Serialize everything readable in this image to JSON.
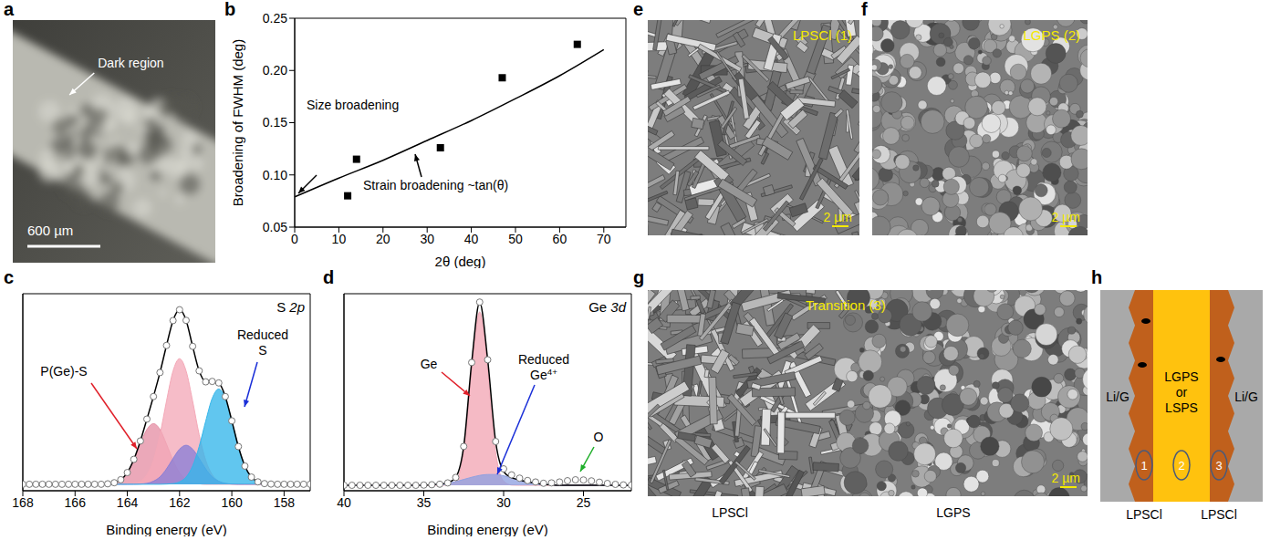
{
  "panel_letters": [
    "a",
    "b",
    "c",
    "d",
    "e",
    "f",
    "g",
    "h"
  ],
  "images": {
    "a": {
      "annotation": "Dark region",
      "scale_bar": "600 µm"
    },
    "e": {
      "label": "LPSCl (1)",
      "scale_bar": "2 µm"
    },
    "f": {
      "label": "LGPS (2)",
      "scale_bar": "2 µm"
    },
    "g": {
      "label": "Transition (3)",
      "scale_bar": "2 µm",
      "captions": [
        "LPSCl",
        "LGPS"
      ]
    }
  },
  "diagram": {
    "sides": [
      "Li/G",
      "Li/G"
    ],
    "center": [
      "LGPS",
      "or",
      "LSPS"
    ],
    "markers": [
      "1",
      "2",
      "3"
    ],
    "captions": [
      "LPSCl",
      "LPSCl"
    ]
  },
  "chart_data": [
    {
      "type": "scatter",
      "x_label": "2θ (deg)",
      "y_label": "Broadening of FWHM (deg)",
      "xlim": [
        0,
        75
      ],
      "xticks": [
        0,
        10,
        20,
        30,
        40,
        50,
        60,
        70
      ],
      "ylim": [
        0.05,
        0.25
      ],
      "yticks": [
        {
          "value": 0.05,
          "label": "0.05"
        },
        {
          "value": 0.1,
          "label": "0.10"
        },
        {
          "value": 0.15,
          "label": "0.15"
        },
        {
          "value": 0.2,
          "label": "0.20"
        },
        {
          "value": 0.25,
          "label": "0.25"
        }
      ],
      "annotations": [
        "Size broadening",
        "Strain broadening ~tan(θ)"
      ],
      "series": [
        {
          "type": "scatter",
          "marker": "square",
          "color": "#000000",
          "x": [
            12,
            14,
            33,
            47,
            64
          ],
          "values": [
            0.08,
            0.115,
            0.126,
            0.193,
            0.225
          ]
        },
        {
          "type": "line",
          "line_style": "solid",
          "color": "#000000",
          "x": [
            0,
            10,
            20,
            30,
            40,
            50,
            60,
            70
          ],
          "values": [
            0.079,
            0.097,
            0.114,
            0.133,
            0.152,
            0.173,
            0.195,
            0.22
          ]
        }
      ]
    },
    {
      "type": "line",
      "title": "S 2p",
      "x_label": "Binding energy (eV)",
      "tick_labels": "x",
      "xlim": [
        168,
        157
      ],
      "xticks": [
        168,
        166,
        164,
        162,
        160,
        158
      ],
      "ylim": [
        -3,
        88
      ],
      "annotations": [
        "P(Ge)-S",
        "Reduced S"
      ],
      "x": [
        168,
        167.75,
        167.5,
        167.25,
        167,
        166.75,
        166.5,
        166.25,
        166,
        165.75,
        165.5,
        165.25,
        165,
        164.75,
        164.5,
        164.25,
        164,
        163.75,
        163.5,
        163.25,
        163,
        162.75,
        162.5,
        162.25,
        162,
        161.75,
        161.5,
        161.25,
        161,
        160.75,
        160.5,
        160.25,
        160,
        159.75,
        159.5,
        159.25,
        159,
        158.75,
        158.5,
        158.25,
        158,
        157.75,
        157.5,
        157.25,
        157
      ],
      "series": [
        {
          "type": "area",
          "color": "#e58fa5",
          "values": [
            0,
            0,
            0,
            0,
            0,
            0,
            0,
            0,
            0,
            0,
            0,
            0,
            0,
            0.2,
            0.7,
            2.1,
            5.3,
            11.1,
            18.5,
            25.3,
            28,
            25.3,
            18.5,
            11.1,
            5.3,
            2.1,
            0.7,
            0.2,
            0,
            0,
            0,
            0,
            0,
            0,
            0,
            0,
            0,
            0,
            0,
            0,
            0,
            0,
            0,
            0,
            0
          ]
        },
        {
          "type": "area",
          "color": "#f4a9b8",
          "values": [
            0,
            0,
            0,
            0,
            0,
            0,
            0,
            0,
            0,
            0,
            0,
            0,
            0,
            0,
            0,
            0,
            0.1,
            0.4,
            1.4,
            4.4,
            11.1,
            22.9,
            38.4,
            52.3,
            58,
            52.3,
            38.4,
            22.9,
            11.1,
            4.4,
            1.4,
            0.4,
            0.1,
            0,
            0,
            0,
            0,
            0,
            0,
            0,
            0,
            0,
            0,
            0,
            0
          ]
        },
        {
          "type": "area",
          "color": "#8a7fd6",
          "values": [
            0,
            0,
            0,
            0,
            0,
            0,
            0,
            0,
            0,
            0,
            0,
            0,
            0,
            0,
            0,
            0,
            0,
            0,
            0.1,
            0.4,
            1.4,
            3.4,
            7.1,
            11.9,
            16.2,
            18,
            16.2,
            11.9,
            7.1,
            3.4,
            1.4,
            0.4,
            0.1,
            0,
            0,
            0,
            0,
            0,
            0,
            0,
            0,
            0,
            0,
            0,
            0
          ]
        },
        {
          "type": "area",
          "color": "#35b6ea",
          "values": [
            0,
            0,
            0,
            0,
            0,
            0,
            0,
            0,
            0,
            0,
            0,
            0,
            0,
            0,
            0,
            0,
            0,
            0,
            0,
            0,
            0,
            0,
            0.1,
            0.3,
            1.1,
            3.3,
            8.4,
            17.4,
            29.1,
            39.7,
            44,
            39.7,
            29.1,
            17.4,
            8.4,
            3.3,
            1.1,
            0.3,
            0.1,
            0,
            0,
            0,
            0,
            0,
            0
          ]
        },
        {
          "type": "line",
          "marker": "circle",
          "line_style": "solid",
          "color": "#000000",
          "values": [
            0,
            0,
            0,
            0,
            0,
            0,
            0,
            0,
            0,
            0,
            0,
            0,
            0,
            0.2,
            0.7,
            2.1,
            5.4,
            11.5,
            20,
            30.1,
            40.5,
            51.6,
            64.1,
            75.6,
            80.6,
            75.7,
            63.7,
            52.4,
            47.3,
            47.5,
            46.8,
            40.5,
            29.3,
            17.4,
            8.4,
            3.3,
            1.1,
            0.3,
            0.1,
            0,
            0,
            0,
            0,
            0,
            0
          ]
        }
      ]
    },
    {
      "type": "line",
      "title": "Ge 3d",
      "x_label": "Binding energy (eV)",
      "tick_labels": "x",
      "xlim": [
        40,
        22
      ],
      "xticks": [
        40,
        35,
        30,
        25
      ],
      "ylim": [
        -3,
        105
      ],
      "annotations": [
        "Ge",
        "Reduced Ge4+",
        "O"
      ],
      "x": [
        40,
        39.5,
        39,
        38.5,
        38,
        37.5,
        37,
        36.5,
        36,
        35.5,
        35,
        34.5,
        34,
        33.5,
        33,
        32.5,
        32,
        31.5,
        31,
        30.5,
        30,
        29.5,
        29,
        28.5,
        28,
        27.5,
        27,
        26.5,
        26,
        25.5,
        25,
        24.5,
        24,
        23.5,
        23,
        22.5,
        22
      ],
      "series": [
        {
          "type": "area",
          "color": "#f2a6b5",
          "values": [
            0,
            0,
            0,
            0,
            0,
            0,
            0,
            0,
            0,
            0,
            0,
            0,
            0,
            0.1,
            2.3,
            18.1,
            62.9,
            95,
            62.9,
            18.1,
            2.3,
            0.1,
            0,
            0,
            0,
            0,
            0,
            0,
            0,
            0,
            0,
            0,
            0,
            0,
            0,
            0,
            0
          ]
        },
        {
          "type": "area",
          "color": "#8fa0e0",
          "values": [
            0,
            0,
            0,
            0,
            0,
            0,
            0,
            0,
            0,
            0,
            0.1,
            0.3,
            0.6,
            1.2,
            2,
            3.2,
            4.4,
            5.4,
            5.9,
            5.9,
            5.2,
            4.1,
            2.9,
            1.9,
            1.1,
            0.5,
            0.2,
            0,
            0,
            0,
            0,
            0,
            0,
            0,
            0,
            0,
            0
          ]
        },
        {
          "type": "line",
          "line_style": "solid",
          "color": "#000000",
          "values": [
            0,
            0,
            0,
            0,
            0,
            0,
            0,
            0,
            0,
            0,
            0.1,
            0.3,
            0.6,
            1.3,
            4.3,
            21.3,
            67.3,
            100.4,
            68.8,
            24,
            7.5,
            4.2,
            2.9,
            1.9,
            1.1,
            0.5,
            0.2,
            0,
            0,
            0,
            0,
            0,
            0,
            0,
            0,
            0,
            0
          ]
        },
        {
          "type": "line",
          "marker": "circle",
          "line_style": "none",
          "color": "#777777",
          "values": [
            0,
            0,
            0,
            0,
            0,
            0,
            0,
            0,
            0,
            0,
            0.1,
            0.3,
            0.6,
            1.3,
            4.3,
            21.3,
            67.3,
            100.4,
            68.8,
            24,
            9,
            5.7,
            3.9,
            2.6,
            1.8,
            1.1,
            1.3,
            1.8,
            2.5,
            3,
            2.9,
            2.4,
            1.7,
            1,
            0.5,
            0.2,
            0.1
          ]
        }
      ]
    }
  ]
}
